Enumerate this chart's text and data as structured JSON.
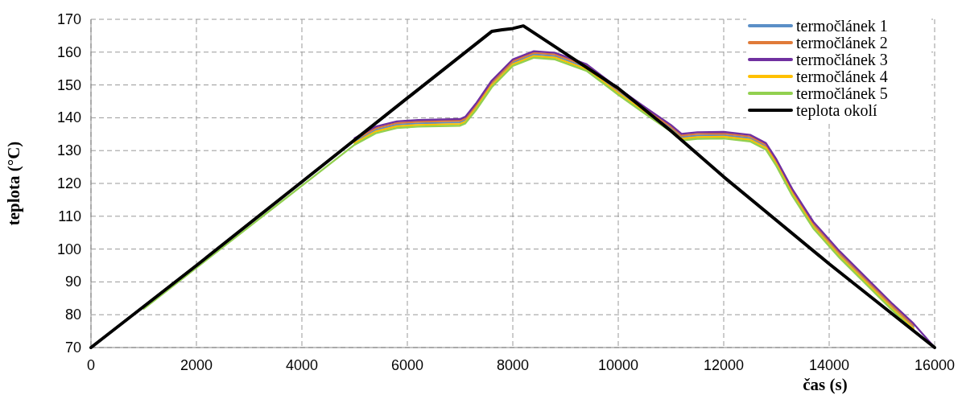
{
  "chart_data": {
    "type": "line",
    "xlabel": "čas (s)",
    "ylabel": "teplota (°C)",
    "x": [
      1000,
      2000,
      3000,
      4000,
      5000,
      5400,
      5800,
      6200,
      7000,
      7100,
      7300,
      7600,
      8000,
      8400,
      8800,
      9400,
      10000,
      10500,
      11000,
      11200,
      11500,
      12000,
      12500,
      12800,
      13000,
      13300,
      13700,
      14200,
      14700,
      15200,
      15600,
      16000
    ],
    "series": [
      {
        "name": "termočlánek 1",
        "color": "#5b8fc7",
        "values": [
          null,
          null,
          null,
          null,
          132.8,
          136.3,
          137.9,
          138.3,
          138.6,
          139.3,
          143.3,
          150.3,
          156.8,
          159.3,
          158.8,
          155.3,
          148,
          142.3,
          136.8,
          134.1,
          134.6,
          134.7,
          133.8,
          131.3,
          126.3,
          117.3,
          107.3,
          98.3,
          90.3,
          82.3,
          76.3,
          null
        ]
      },
      {
        "name": "termočlánek 2",
        "color": "#e07b39",
        "values": [
          null,
          null,
          null,
          null,
          133.3,
          136.8,
          138.4,
          138.8,
          139.1,
          139.8,
          143.8,
          150.8,
          157.3,
          159.8,
          159.3,
          155.8,
          148.5,
          142.8,
          137.3,
          134.6,
          135.1,
          135.2,
          134.3,
          131.8,
          126.8,
          117.8,
          107.8,
          98.8,
          90.8,
          82.8,
          76.8,
          null
        ]
      },
      {
        "name": "termočlánek 3",
        "color": "#7030a0",
        "values": [
          null,
          null,
          null,
          null,
          133.8,
          137.3,
          138.9,
          139.3,
          139.6,
          140.3,
          144.3,
          151.3,
          157.8,
          160.3,
          159.8,
          156.3,
          149,
          143.3,
          137.8,
          135.1,
          135.6,
          135.7,
          134.8,
          132.3,
          127.3,
          118.3,
          108.3,
          99.3,
          91.3,
          83.3,
          77.3,
          70
        ]
      },
      {
        "name": "termočlánek 4",
        "color": "#ffc000",
        "values": [
          null,
          null,
          null,
          null,
          132.3,
          135.8,
          137.4,
          137.8,
          138.1,
          138.8,
          142.8,
          149.8,
          156.3,
          158.8,
          158.3,
          154.8,
          147.5,
          141.8,
          136.3,
          133.6,
          134.1,
          134.2,
          133.3,
          130.8,
          125.8,
          116.8,
          106.8,
          97.8,
          89.8,
          81.8,
          75.8,
          null
        ]
      },
      {
        "name": "termočlánek 5",
        "color": "#92d050",
        "values": [
          81.8,
          94.3,
          106.8,
          119.3,
          131.8,
          135.3,
          136.9,
          137.3,
          137.6,
          138.3,
          142.3,
          149.3,
          155.8,
          158.3,
          157.8,
          154.3,
          147,
          141.3,
          135.8,
          133.1,
          133.6,
          133.7,
          132.8,
          130.3,
          125.3,
          116.3,
          106.3,
          97.3,
          89.3,
          81.3,
          75.3,
          70
        ]
      },
      {
        "name": "teplota okolí",
        "color": "#000000",
        "x": [
          0,
          2000,
          4000,
          6000,
          7600,
          7800,
          8000,
          8200,
          10000,
          11000,
          12000,
          14000,
          16000
        ],
        "values": [
          70,
          95,
          120.5,
          146,
          166.3,
          166.8,
          167.2,
          168,
          149,
          136,
          122,
          95.5,
          70
        ]
      }
    ],
    "xlim": [
      0,
      16000
    ],
    "xticks": [
      0,
      2000,
      4000,
      6000,
      8000,
      10000,
      12000,
      14000,
      16000
    ],
    "ylim": [
      70,
      170
    ],
    "yticks": [
      70,
      80,
      90,
      100,
      110,
      120,
      130,
      140,
      150,
      160,
      170
    ],
    "grid": true,
    "legend": "top right",
    "marker": "none",
    "line_style": "solid"
  }
}
